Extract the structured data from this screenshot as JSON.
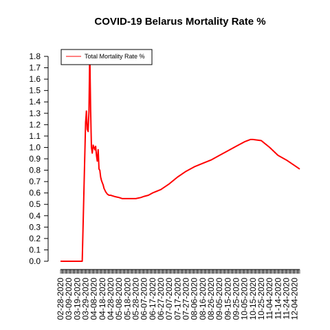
{
  "chart_data": {
    "type": "line",
    "title": "COVID-19 Belarus Mortality Rate %",
    "xlabel": "",
    "ylabel": "",
    "ylim": [
      0,
      1.8
    ],
    "yticks": [
      0.0,
      0.1,
      0.2,
      0.3,
      0.4,
      0.5,
      0.6,
      0.7,
      0.8,
      0.9,
      1.0,
      1.1,
      1.2,
      1.3,
      1.4,
      1.5,
      1.6,
      1.7,
      1.8
    ],
    "xlim": [
      "02-28-2020",
      "12-10-2020"
    ],
    "xticks": [
      "02-28-2020",
      "03-09-2020",
      "03-19-2020",
      "03-29-2020",
      "04-08-2020",
      "04-18-2020",
      "04-28-2020",
      "05-08-2020",
      "05-18-2020",
      "05-28-2020",
      "06-07-2020",
      "06-17-2020",
      "06-27-2020",
      "07-07-2020",
      "07-17-2020",
      "07-27-2020",
      "08-06-2020",
      "08-16-2020",
      "08-26-2020",
      "09-05-2020",
      "09-15-2020",
      "09-25-2020",
      "10-05-2020",
      "10-15-2020",
      "10-25-2020",
      "11-04-2020",
      "11-14-2020",
      "11-24-2020",
      "12-04-2020"
    ],
    "legend": {
      "position": "top-left",
      "entries": [
        "Total Mortality Rate %"
      ]
    },
    "grid": false,
    "colors": {
      "series": "#ff0000"
    },
    "series": [
      {
        "name": "Total Mortality Rate %",
        "x": [
          "02-28-2020",
          "03-25-2020",
          "03-29-2020",
          "03-30-2020",
          "03-31-2020",
          "04-01-2020",
          "04-02-2020",
          "04-03-2020",
          "04-04-2020",
          "04-05-2020",
          "04-06-2020",
          "04-07-2020",
          "04-08-2020",
          "04-09-2020",
          "04-10-2020",
          "04-11-2020",
          "04-12-2020",
          "04-13-2020",
          "04-14-2020",
          "04-15-2020",
          "04-16-2020",
          "04-17-2020",
          "04-18-2020",
          "04-19-2020",
          "04-20-2020",
          "04-22-2020",
          "04-24-2020",
          "04-26-2020",
          "04-28-2020",
          "04-30-2020",
          "05-02-2020",
          "05-05-2020",
          "05-08-2020",
          "05-12-2020",
          "05-18-2020",
          "05-23-2020",
          "05-28-2020",
          "06-03-2020",
          "06-07-2020",
          "06-12-2020",
          "06-17-2020",
          "06-27-2020",
          "07-07-2020",
          "07-17-2020",
          "07-27-2020",
          "08-06-2020",
          "08-16-2020",
          "08-26-2020",
          "09-05-2020",
          "09-15-2020",
          "09-25-2020",
          "10-05-2020",
          "10-12-2020",
          "10-15-2020",
          "10-25-2020",
          "11-04-2020",
          "11-14-2020",
          "11-24-2020",
          "12-04-2020",
          "12-10-2020"
        ],
        "values": [
          0.0,
          0.0,
          1.22,
          1.32,
          1.16,
          1.14,
          1.32,
          1.85,
          1.33,
          1.0,
          0.95,
          1.02,
          1.0,
          0.98,
          1.01,
          0.93,
          0.88,
          0.98,
          0.81,
          0.8,
          0.74,
          0.71,
          0.69,
          0.67,
          0.64,
          0.61,
          0.59,
          0.58,
          0.58,
          0.575,
          0.57,
          0.565,
          0.56,
          0.55,
          0.55,
          0.55,
          0.55,
          0.56,
          0.57,
          0.58,
          0.6,
          0.63,
          0.68,
          0.74,
          0.79,
          0.83,
          0.86,
          0.89,
          0.93,
          0.97,
          1.01,
          1.05,
          1.07,
          1.07,
          1.06,
          1.0,
          0.93,
          0.89,
          0.84,
          0.81
        ]
      }
    ]
  }
}
